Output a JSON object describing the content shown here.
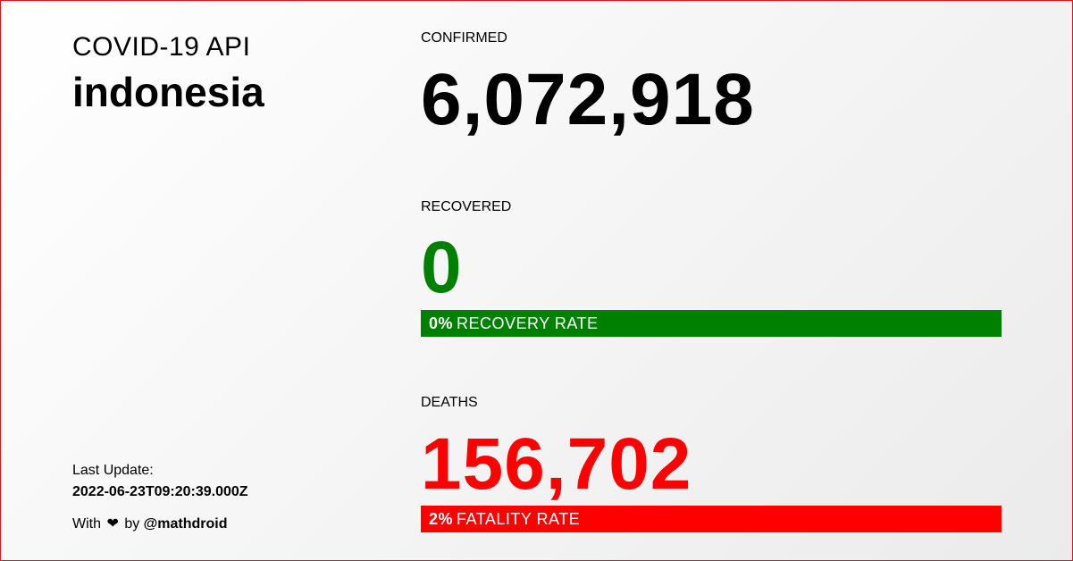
{
  "header": {
    "app_title": "COVID-19 API",
    "country": "indonesia"
  },
  "footer": {
    "last_update_label": "Last Update:",
    "last_update_value": "2022-06-23T09:20:39.000Z",
    "credit_prefix": "With",
    "credit_heart": "❤",
    "credit_by": "by",
    "credit_author": "@mathdroid"
  },
  "stats": {
    "confirmed": {
      "label": "CONFIRMED",
      "value": "6,072,918",
      "color": "#000000"
    },
    "recovered": {
      "label": "RECOVERED",
      "value": "0",
      "color": "#008000",
      "rate_percent_text": "0%",
      "rate_label": "RECOVERY RATE",
      "rate_fill_percent": 100,
      "bar_color": "#008000"
    },
    "deaths": {
      "label": "DEATHS",
      "value": "156,702",
      "color": "#ff0000",
      "rate_percent_text": "2%",
      "rate_label": "FATALITY RATE",
      "rate_fill_percent": 100,
      "bar_color": "#ff0000"
    }
  },
  "theme": {
    "border_color": "#e0141e"
  }
}
